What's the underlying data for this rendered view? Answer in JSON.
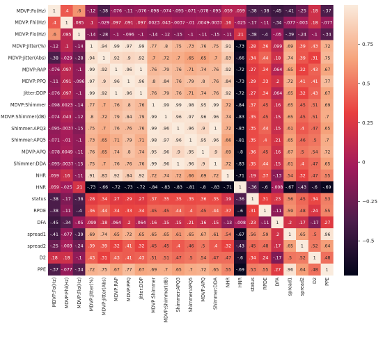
{
  "chart_data": {
    "type": "heatmap",
    "labels": [
      "MDVP:Fo(Hz)",
      "MDVP:Fhi(Hz)",
      "MDVP:Flo(Hz)",
      "MDVP:Jitter(%)",
      "MDVP:Jitter(Abs)",
      "MDVP:RAP",
      "MDVP:PPQ",
      "Jitter:DDP",
      "MDVP:Shimmer",
      "MDVP:Shimmer(dB)",
      "Shimmer:APQ3",
      "Shimmer:APQ5",
      "MDVP:APQ",
      "Shimmer:DDA",
      "NHR",
      "HNR",
      "status",
      "RPDE",
      "DFA",
      "spread1",
      "spread2",
      "D2",
      "PPE"
    ],
    "values": [
      [
        1,
        0.4,
        0.6,
        -0.12,
        -0.38,
        -0.076,
        -0.11,
        -0.076,
        -0.098,
        -0.074,
        -0.095,
        -0.071,
        -0.078,
        -0.095,
        0.059,
        0.059,
        -0.38,
        -0.38,
        -0.45,
        -0.41,
        -0.25,
        0.18,
        -0.37
      ],
      [
        0.4,
        1,
        0.085,
        0.1,
        -0.029,
        0.097,
        0.091,
        0.097,
        0.0023,
        0.043,
        -0.0037,
        -0.01,
        0.0049,
        -0.0037,
        0.16,
        -0.025,
        -0.17,
        -0.11,
        -0.34,
        -0.077,
        -0.003,
        0.18,
        -0.077
      ],
      [
        0.6,
        0.085,
        1,
        -0.14,
        -0.28,
        -0.1,
        -0.096,
        -0.1,
        -0.14,
        -0.12,
        -0.15,
        -0.1,
        -0.11,
        -0.15,
        -0.11,
        0.21,
        -0.38,
        -0.4,
        -0.05,
        -0.39,
        -0.24,
        -0.1,
        -0.34
      ],
      [
        -0.12,
        0.1,
        -0.14,
        1,
        0.94,
        0.99,
        0.97,
        0.99,
        0.77,
        0.8,
        0.75,
        0.73,
        0.76,
        0.75,
        0.91,
        -0.73,
        0.28,
        0.36,
        0.099,
        0.69,
        0.39,
        0.43,
        0.72
      ],
      [
        -0.38,
        -0.029,
        -0.28,
        0.94,
        1,
        0.92,
        0.9,
        0.92,
        0.7,
        0.72,
        0.7,
        0.65,
        0.65,
        0.7,
        0.83,
        -0.66,
        0.34,
        0.44,
        0.18,
        0.74,
        0.39,
        0.31,
        0.75
      ],
      [
        -0.076,
        0.097,
        -0.1,
        0.99,
        0.92,
        1,
        0.96,
        1,
        0.76,
        0.79,
        0.76,
        0.71,
        0.74,
        0.76,
        0.92,
        -0.72,
        0.27,
        0.34,
        0.064,
        0.65,
        0.32,
        0.43,
        0.67
      ],
      [
        -0.11,
        0.091,
        -0.096,
        0.97,
        0.9,
        0.96,
        1,
        0.96,
        0.8,
        0.84,
        0.76,
        0.79,
        0.8,
        0.76,
        0.84,
        -0.73,
        0.29,
        0.33,
        0.2,
        0.72,
        0.41,
        0.41,
        0.77
      ],
      [
        -0.076,
        0.097,
        -0.1,
        0.99,
        0.92,
        1,
        0.96,
        1,
        0.76,
        0.79,
        0.76,
        0.71,
        0.74,
        0.76,
        0.92,
        -0.72,
        0.27,
        0.34,
        0.064,
        0.65,
        0.32,
        0.43,
        0.67
      ],
      [
        -0.098,
        0.0023,
        -0.14,
        0.77,
        0.7,
        0.76,
        0.8,
        0.76,
        1,
        0.99,
        0.99,
        0.98,
        0.95,
        0.99,
        0.72,
        -0.84,
        0.37,
        0.45,
        0.16,
        0.65,
        0.45,
        0.51,
        0.69
      ],
      [
        -0.074,
        0.043,
        -0.12,
        0.8,
        0.72,
        0.79,
        0.84,
        0.79,
        0.99,
        1,
        0.96,
        0.97,
        0.96,
        0.96,
        0.74,
        -0.83,
        0.35,
        0.45,
        0.15,
        0.65,
        0.45,
        0.51,
        0.7
      ],
      [
        -0.095,
        -0.0037,
        -0.15,
        0.75,
        0.7,
        0.76,
        0.76,
        0.76,
        0.99,
        0.96,
        1,
        0.96,
        0.9,
        1,
        0.72,
        -0.83,
        0.35,
        0.44,
        0.15,
        0.61,
        0.4,
        0.47,
        0.65
      ],
      [
        -0.071,
        -0.01,
        -0.1,
        0.73,
        0.65,
        0.71,
        0.79,
        0.71,
        0.98,
        0.97,
        0.96,
        1,
        0.95,
        0.96,
        0.66,
        -0.81,
        0.35,
        0.4,
        0.21,
        0.65,
        0.46,
        0.5,
        0.7
      ],
      [
        -0.078,
        0.0049,
        -0.11,
        0.76,
        0.65,
        0.74,
        0.8,
        0.74,
        0.95,
        0.96,
        0.9,
        0.95,
        1,
        0.9,
        0.69,
        -0.8,
        0.36,
        0.45,
        0.16,
        0.67,
        0.5,
        0.54,
        0.72
      ],
      [
        -0.095,
        -0.0037,
        -0.15,
        0.75,
        0.7,
        0.76,
        0.76,
        0.76,
        0.99,
        0.96,
        1,
        0.96,
        0.9,
        1,
        0.72,
        -0.83,
        0.35,
        0.44,
        0.15,
        0.61,
        0.4,
        0.47,
        0.65
      ],
      [
        0.059,
        0.16,
        -0.11,
        0.91,
        0.83,
        0.92,
        0.84,
        0.92,
        0.72,
        0.74,
        0.72,
        0.66,
        0.69,
        0.72,
        1,
        -0.71,
        0.19,
        0.37,
        -0.13,
        0.54,
        0.32,
        0.47,
        0.55
      ],
      [
        0.059,
        -0.025,
        0.21,
        -0.73,
        -0.66,
        -0.72,
        -0.73,
        -0.72,
        -0.84,
        -0.83,
        -0.83,
        -0.81,
        -0.8,
        -0.83,
        -0.71,
        1,
        -0.36,
        -0.6,
        -0.008,
        -0.67,
        -0.43,
        -0.6,
        -0.69
      ],
      [
        -0.38,
        -0.17,
        -0.38,
        0.28,
        0.34,
        0.27,
        0.29,
        0.27,
        0.37,
        0.35,
        0.35,
        0.35,
        0.36,
        0.35,
        0.19,
        -0.36,
        1,
        0.31,
        0.23,
        0.56,
        0.45,
        0.34,
        0.53
      ],
      [
        -0.38,
        -0.11,
        -0.4,
        0.36,
        0.44,
        0.34,
        0.33,
        0.34,
        0.45,
        0.45,
        0.44,
        0.4,
        0.45,
        0.44,
        0.37,
        -0.6,
        0.31,
        1,
        -0.11,
        0.59,
        0.48,
        0.24,
        0.55
      ],
      [
        -0.45,
        -0.34,
        -0.05,
        0.099,
        0.18,
        0.064,
        0.2,
        0.064,
        0.16,
        0.15,
        0.15,
        0.21,
        0.16,
        0.15,
        -0.13,
        -0.008,
        0.23,
        -0.11,
        1,
        0.2,
        0.17,
        -0.17,
        0.27
      ],
      [
        -0.41,
        -0.077,
        -0.39,
        0.69,
        0.74,
        0.65,
        0.72,
        0.65,
        0.65,
        0.65,
        0.61,
        0.65,
        0.67,
        0.61,
        0.54,
        -0.67,
        0.56,
        0.59,
        0.2,
        1,
        0.65,
        0.5,
        0.96
      ],
      [
        -0.25,
        -0.003,
        -0.24,
        0.39,
        0.39,
        0.32,
        0.41,
        0.32,
        0.45,
        0.45,
        0.4,
        0.46,
        0.5,
        0.4,
        0.32,
        -0.43,
        0.45,
        0.48,
        0.17,
        0.65,
        1,
        0.52,
        0.64
      ],
      [
        0.18,
        0.18,
        -0.1,
        0.43,
        0.31,
        0.43,
        0.41,
        0.43,
        0.51,
        0.51,
        0.47,
        0.5,
        0.54,
        0.47,
        0.47,
        -0.6,
        0.34,
        0.24,
        -0.17,
        0.5,
        0.52,
        1,
        0.48
      ],
      [
        -0.37,
        -0.077,
        -0.34,
        0.72,
        0.75,
        0.67,
        0.77,
        0.67,
        0.69,
        0.7,
        0.65,
        0.7,
        0.72,
        0.65,
        0.55,
        -0.69,
        0.53,
        0.55,
        0.27,
        0.96,
        0.64,
        0.48,
        1
      ]
    ],
    "vmin": -0.72,
    "vmax": 1,
    "colorbar_ticks": [
      -0.5,
      -0.25,
      0,
      0.25,
      0.5,
      0.75
    ],
    "annotate": true,
    "title": "",
    "xlabel": "",
    "ylabel": ""
  }
}
